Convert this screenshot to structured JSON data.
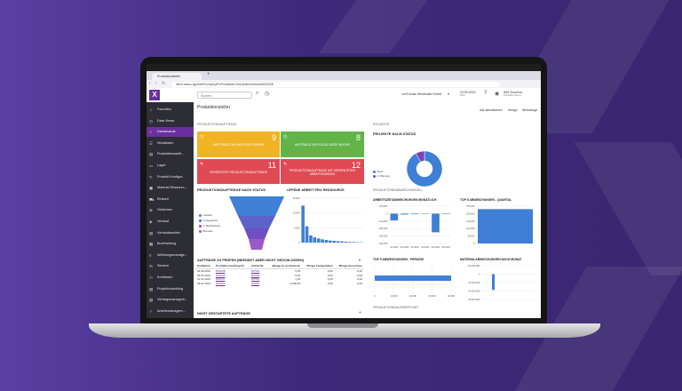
{
  "browser": {
    "tab_title": "Produktionsleiter",
    "url": "demo.avisco.app/#ctrl/Company/Ex/Produktion.DemoAdmin/Index/AM031008"
  },
  "header": {
    "search_placeholder": "Suchen...",
    "company": "LexTronics Wholesale GmbH",
    "date": "19.09.2023",
    "date_sub": "MINI",
    "user_name": "IDM Cloud bot",
    "user_sub": "Produktion Demo",
    "links": [
      "Alle aktualisieren",
      "Design",
      "Werkzeuge"
    ]
  },
  "sidebar": {
    "items": [
      {
        "label": "Favoriten",
        "icon": "star-icon"
      },
      {
        "label": "Data Views",
        "icon": "clock-icon"
      },
      {
        "label": "Dashboards",
        "icon": "dashboard-icon"
      },
      {
        "label": "Stücklisten",
        "icon": "list-icon"
      },
      {
        "label": "Produktionsauftr...",
        "icon": "document-icon"
      },
      {
        "label": "Lager",
        "icon": "folder-icon"
      },
      {
        "label": "Produkt Konfigur...",
        "icon": "wrench-icon"
      },
      {
        "label": "Material Ressourc...",
        "icon": "box-icon"
      },
      {
        "label": "Einkauf",
        "icon": "cart-icon"
      },
      {
        "label": "Geldzinen",
        "icon": "coin-icon"
      },
      {
        "label": "Verkauf",
        "icon": "tag-icon"
      },
      {
        "label": "Verkaufszahlen",
        "icon": "chart-icon"
      },
      {
        "label": "Buchhaltung",
        "icon": "book-icon"
      },
      {
        "label": "Währungsmanage...",
        "icon": "currency-icon"
      },
      {
        "label": "Steuern",
        "icon": "percent-icon"
      },
      {
        "label": "Kreditoren",
        "icon": "people-icon"
      },
      {
        "label": "Projektcontrolling",
        "icon": "project-icon"
      },
      {
        "label": "Vertragsmanagem...",
        "icon": "contract-icon"
      },
      {
        "label": "Arbeitsmanagem...",
        "icon": "task-icon"
      }
    ]
  },
  "main": {
    "title": "Produktionsleiter",
    "section_auftraege": "PRODUKTIONSAUFTRÄGE",
    "section_projekte": "PROJEKTE",
    "section_abweichungen": "PRODUKTIONSABWEICHUNGEN",
    "section_auswertung": "PRODUKTIONSAUSWERTUNG",
    "kpis": [
      {
        "value": "9",
        "text": "AUFTRÄGE ZUM HEUTIGEN TERMIN",
        "color": "#f0b323"
      },
      {
        "value": "8",
        "text": "AUFTRÄGE ZUR FOLGE DIESE WOCHE",
        "color": "#62b449"
      },
      {
        "value": "11",
        "text": "VERSPÄTETE PRODUKTIONSAUFTRÄGE",
        "color": "#e04a55"
      },
      {
        "value": "12",
        "text": "PRODUKTIONSAUFTRÄGE MIT VERSPÄTETEN ARBEITSGÄNGEN",
        "color": "#e04a55"
      }
    ],
    "projekte_title": "PROJEKTE NACH STATUS",
    "projekte_legend": [
      "Aktiv",
      "In Planung"
    ],
    "status_title": "PRODUKTIONSAUFTRÄGE NACH STATUS",
    "funnel_legend": [
      "Geplant",
      "Freigegeben",
      "In Bearbeitung",
      "Beendet"
    ],
    "offene_title": "OFFENE ARBEIT PRO RESSOURCE",
    "arbeitszeit_title": "ARBEITSZEITABWEICHUNGEN MONATLICH",
    "top5q_title": "TOP 5 ABWEICHUNGEN - QUARTAL",
    "top5p_title": "TOP 5 ABWEICHUNGEN - PERIODE",
    "material_title": "MATERIALABWEICHUNGEN NACH MONAT",
    "pruefen_title": "AUFTRÄGE ZU PRÜFEN (BEENDET ABER NICHT GESCHLOSSEN)",
    "nicht_title": "NICHT GESTARTETE AUFTRÄGE",
    "table": {
      "headers": [
        "Enddatum",
        "Produktionsauftrag Nr.",
        "Artikel Nr.",
        "Menge zu produzieren",
        "Menge Fertigmelden",
        "Menge Ausschuss"
      ],
      "rows": [
        [
          "04.08.2022",
          "PA0038",
          "RP501",
          "5,00",
          "0,00",
          "0,00"
        ],
        [
          "09.01.2022",
          "PA0044",
          "RP501",
          "5,00",
          "0,00",
          "0,00"
        ],
        [
          "12.01.2023",
          "PA0047",
          "RP501",
          "1,00",
          "0,00",
          "0,00"
        ],
        [
          "09.01.2022",
          "PA0052",
          "RP501",
          "2.500,00",
          "0,00",
          "0,00"
        ]
      ]
    }
  },
  "chart_data": [
    {
      "type": "pie",
      "title": "PROJEKTE NACH STATUS",
      "labels": [
        "Aktiv",
        "In Planung"
      ],
      "values": [
        92,
        8
      ],
      "colors": [
        "#3f7fd6",
        "#7b42b5"
      ]
    },
    {
      "type": "bar",
      "title": "OFFENE ARBEIT PRO RESSOURCE",
      "ylim": [
        0,
        15000
      ],
      "ticks": [
        "15,000",
        "10,000",
        "5,000",
        "0"
      ],
      "values": [
        12500,
        5500,
        2400,
        1800,
        1400,
        1100,
        900,
        700,
        600,
        500,
        400,
        300,
        250,
        200,
        150,
        100
      ]
    },
    {
      "type": "bar",
      "title": "ARBEITSZEITABWEICHUNGEN MONATLICH",
      "ticks": [
        "100,000",
        "0",
        "-100,000",
        "-200,000",
        "-300,000",
        "-400,000"
      ],
      "categories": [
        "01.2023",
        "02.2023",
        "03.2023",
        "04.2023",
        "05.2023",
        "06.2023"
      ],
      "values": [
        -90000,
        -12000,
        -8000,
        -5000,
        -250000,
        -6000
      ]
    },
    {
      "type": "bar",
      "title": "TOP 5 ABWEICHUNGEN - QUARTAL",
      "ticks": [
        "250,000",
        "200,000",
        "150,000",
        "100,000",
        "50,000",
        "0"
      ],
      "values": [
        230000
      ]
    },
    {
      "type": "bar",
      "title": "TOP 5 ABWEICHUNGEN - PERIODE",
      "orientation": "horizontal",
      "ticks": [
        "0",
        "10,000",
        "20,000",
        "30,000",
        "40,000"
      ],
      "values": [
        42000
      ]
    },
    {
      "type": "bar",
      "title": "MATERIALABWEICHUNGEN NACH MONAT",
      "ticks": [
        "+15,000,000",
        "0",
        "-15,000,000",
        "-30,000,000",
        "-45,000,000"
      ],
      "values": [
        -28000000
      ]
    },
    {
      "type": "funnel",
      "title": "PRODUKTIONSAUFTRÄGE NACH STATUS",
      "labels": [
        "Geplant",
        "Freigegeben",
        "In Bearbeitung",
        "Beendet"
      ],
      "colors": [
        "#3f7fd6",
        "#5b63c8",
        "#6f4fc0",
        "#9a59c9"
      ]
    }
  ]
}
